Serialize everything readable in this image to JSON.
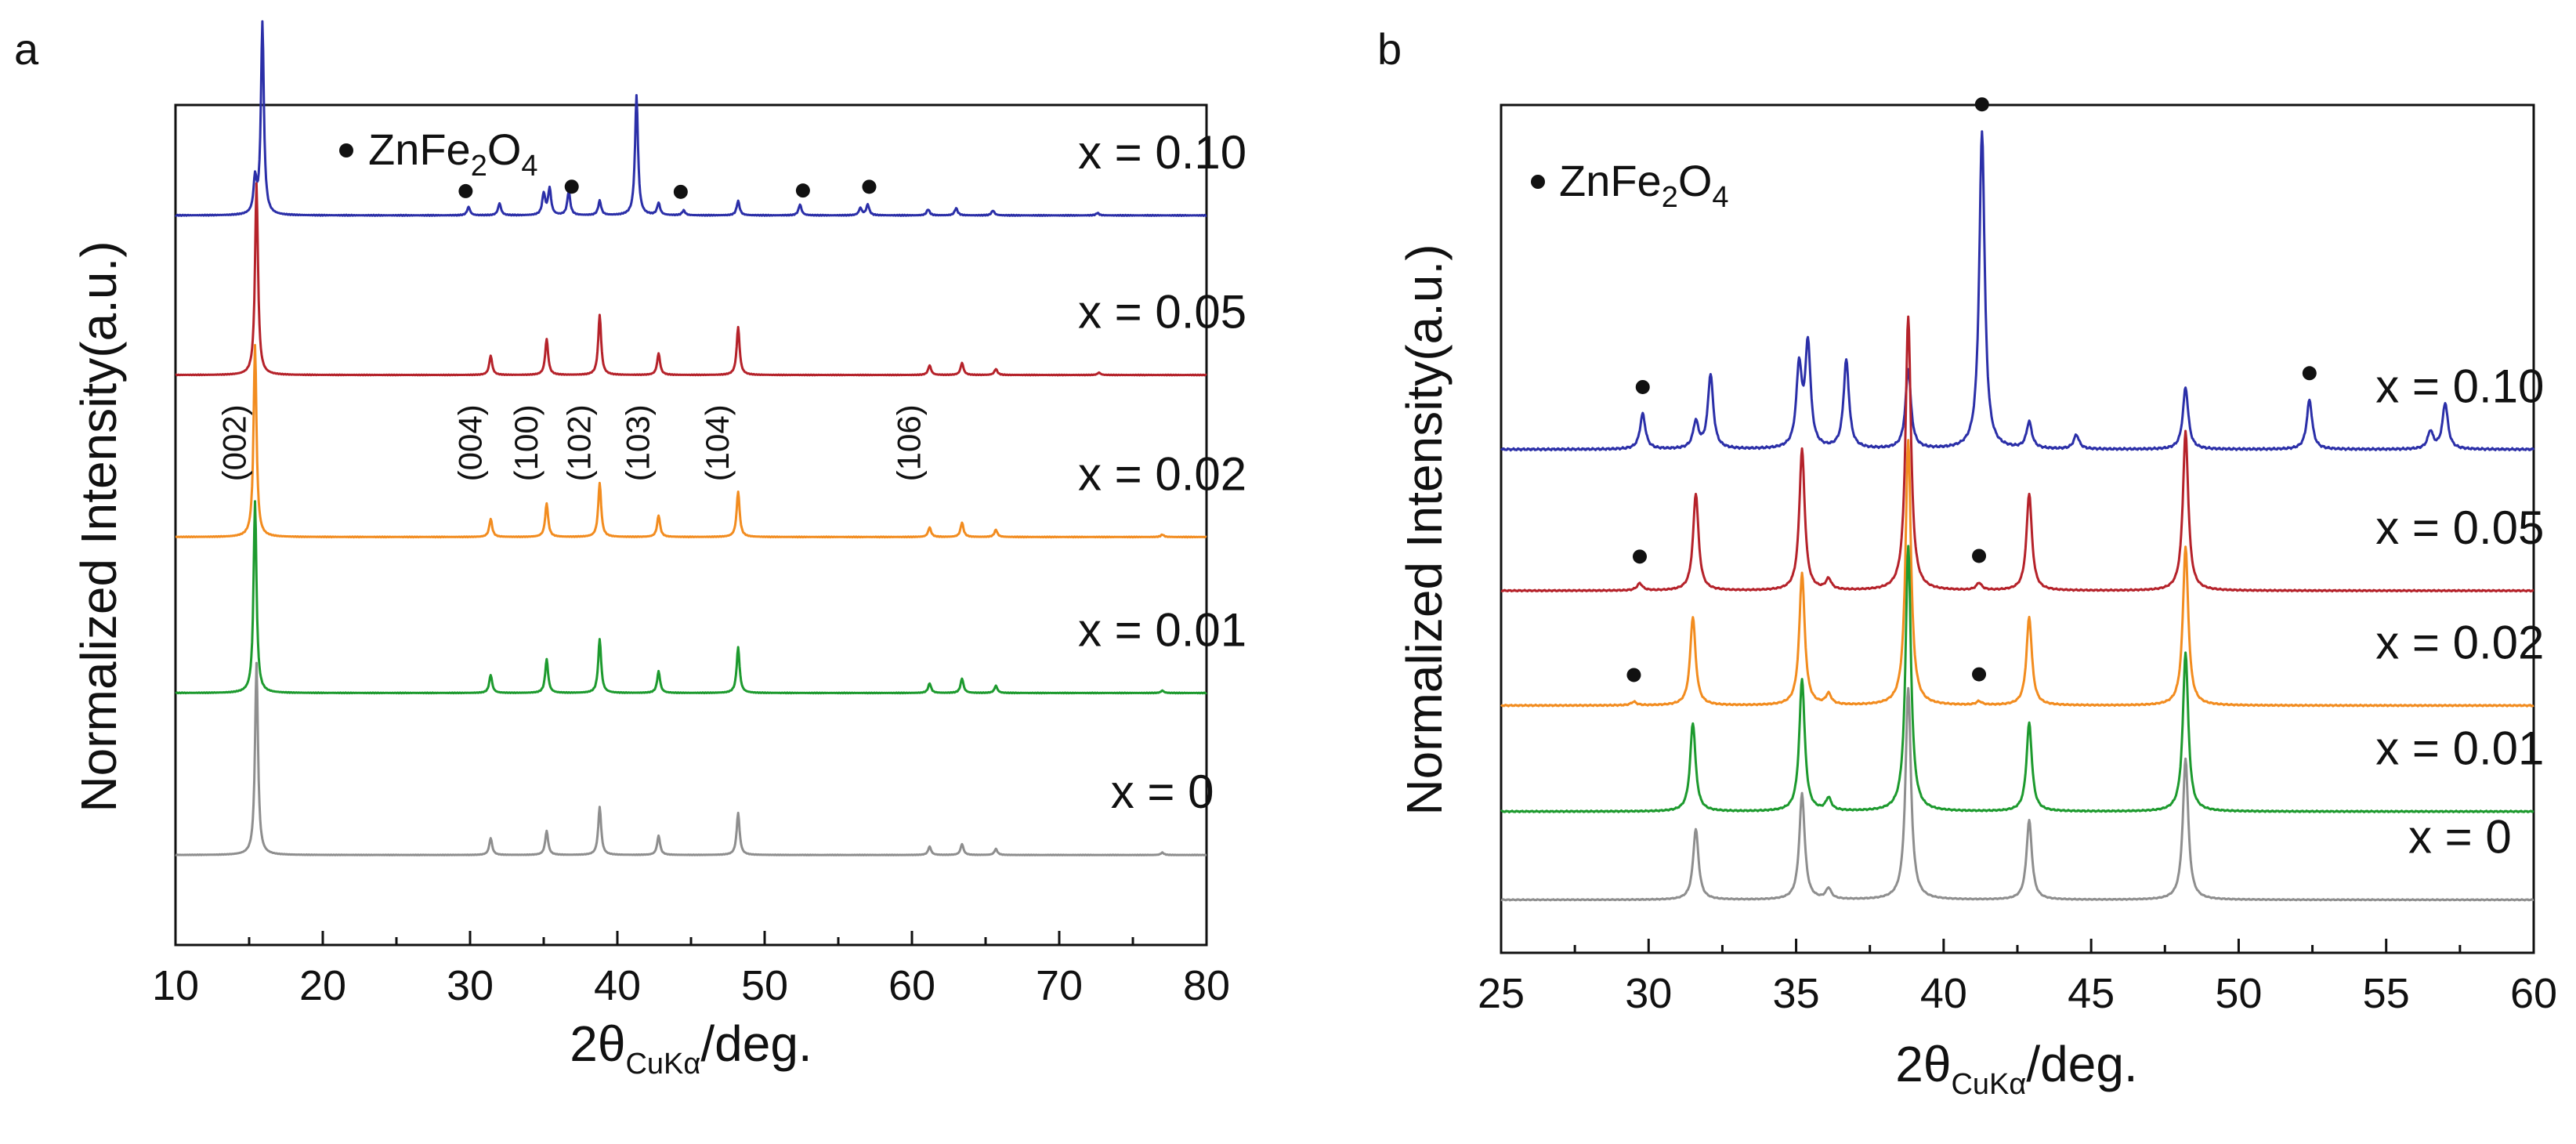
{
  "chart_data": [
    {
      "panel": "a",
      "type": "line",
      "xlabel": {
        "main": "2θ",
        "sub": "CuKα",
        "unit": "/deg."
      },
      "ylabel": "Normalized Intensity(a.u.)",
      "xlim": [
        10,
        80
      ],
      "xticks": [
        10,
        20,
        30,
        40,
        50,
        60,
        70,
        80
      ],
      "xtick_labels": [
        "10",
        "20",
        "30",
        "40",
        "50",
        "60",
        "70",
        "80"
      ],
      "legend": {
        "marker": "•",
        "text": "ZnFe",
        "sub1": "2",
        "text2": "O",
        "sub2": "4"
      },
      "miller_indices": [
        {
          "label": "(002)",
          "x": 15.4
        },
        {
          "label": "(004)",
          "x": 31.4
        },
        {
          "label": "(100)",
          "x": 35.2
        },
        {
          "label": "(102)",
          "x": 38.8
        },
        {
          "label": "(103)",
          "x": 42.8
        },
        {
          "label": "(104)",
          "x": 48.2
        },
        {
          "label": "(106)",
          "x": 61.2
        }
      ],
      "zn_markers": [
        29.7,
        36.9,
        44.3,
        52.6,
        57.1
      ],
      "series": [
        {
          "name": "x = 0.10",
          "color": "#2b2fa8",
          "baseline": 0.92,
          "noise": 0.004,
          "label_x": 77,
          "peaks": [
            [
              15.4,
              0.28
            ],
            [
              15.9,
              1.6
            ],
            [
              29.9,
              0.07
            ],
            [
              32.0,
              0.1
            ],
            [
              35.0,
              0.18
            ],
            [
              35.4,
              0.22
            ],
            [
              36.7,
              0.2
            ],
            [
              38.8,
              0.12
            ],
            [
              41.3,
              1.0
            ],
            [
              42.8,
              0.1
            ],
            [
              44.5,
              0.04
            ],
            [
              48.2,
              0.12
            ],
            [
              52.4,
              0.09
            ],
            [
              56.5,
              0.06
            ],
            [
              57.0,
              0.09
            ],
            [
              61.1,
              0.05
            ],
            [
              63.0,
              0.06
            ],
            [
              65.5,
              0.04
            ],
            [
              72.6,
              0.02
            ]
          ]
        },
        {
          "name": "x = 0.05",
          "color": "#b5222a",
          "baseline": 2.25,
          "noise": 0.003,
          "label_x": 77,
          "peaks": [
            [
              15.5,
              1.6
            ],
            [
              31.4,
              0.16
            ],
            [
              35.2,
              0.3
            ],
            [
              38.8,
              0.5
            ],
            [
              42.8,
              0.18
            ],
            [
              48.2,
              0.4
            ],
            [
              61.2,
              0.08
            ],
            [
              63.4,
              0.1
            ],
            [
              65.7,
              0.05
            ],
            [
              72.7,
              0.02
            ]
          ]
        },
        {
          "name": "x = 0.02",
          "color": "#f28c1f",
          "baseline": 3.6,
          "noise": 0.003,
          "label_x": 77,
          "peaks": [
            [
              15.4,
              1.6
            ],
            [
              31.4,
              0.15
            ],
            [
              35.2,
              0.28
            ],
            [
              38.8,
              0.45
            ],
            [
              42.8,
              0.18
            ],
            [
              48.2,
              0.38
            ],
            [
              61.2,
              0.08
            ],
            [
              63.4,
              0.12
            ],
            [
              65.7,
              0.06
            ],
            [
              77.0,
              0.02
            ]
          ]
        },
        {
          "name": "x = 0.01",
          "color": "#1d9a2e",
          "baseline": 4.9,
          "noise": 0.003,
          "label_x": 77,
          "peaks": [
            [
              15.4,
              1.6
            ],
            [
              31.4,
              0.15
            ],
            [
              35.2,
              0.28
            ],
            [
              38.8,
              0.45
            ],
            [
              42.8,
              0.18
            ],
            [
              48.2,
              0.38
            ],
            [
              61.2,
              0.08
            ],
            [
              63.4,
              0.12
            ],
            [
              65.7,
              0.06
            ],
            [
              77.0,
              0.02
            ]
          ]
        },
        {
          "name": "x = 0",
          "color": "#8e8e8e",
          "baseline": 6.25,
          "noise": 0.002,
          "label_x": 77,
          "peaks": [
            [
              15.5,
              1.6
            ],
            [
              31.4,
              0.14
            ],
            [
              35.2,
              0.2
            ],
            [
              38.8,
              0.4
            ],
            [
              42.8,
              0.16
            ],
            [
              48.2,
              0.35
            ],
            [
              61.2,
              0.07
            ],
            [
              63.4,
              0.09
            ],
            [
              65.7,
              0.05
            ],
            [
              77.0,
              0.02
            ]
          ]
        }
      ],
      "ylim_units": [
        0,
        7.0
      ]
    },
    {
      "panel": "b",
      "type": "line",
      "xlabel": {
        "main": "2θ",
        "sub": "CuKα",
        "unit": "/deg."
      },
      "ylabel": "Normalized Intensity(a.u.)",
      "xlim": [
        25,
        60
      ],
      "xticks": [
        25,
        30,
        35,
        40,
        45,
        50,
        55,
        60
      ],
      "xtick_labels": [
        "25",
        "30",
        "35",
        "40",
        "45",
        "50",
        "55",
        "60"
      ],
      "legend": {
        "marker": "•",
        "text": "ZnFe",
        "sub1": "2",
        "text2": "O",
        "sub2": "4"
      },
      "zn_markers_per_series": [
        [
          [
            29.8,
            "x = 0.10"
          ],
          [
            41.3,
            "x = 0.10"
          ],
          [
            52.4,
            "x = 0.10"
          ]
        ],
        [
          [
            29.7,
            "x = 0.05"
          ],
          [
            41.2,
            "x = 0.05"
          ]
        ],
        [
          [
            29.5,
            "x = 0.02"
          ],
          [
            41.2,
            "x = 0.02"
          ]
        ]
      ],
      "series": [
        {
          "name": "x = 0.10",
          "color": "#2b2fa8",
          "baseline": 1.95,
          "noise": 0.006,
          "label_x": 57.5,
          "peaks": [
            [
              29.8,
              0.2
            ],
            [
              31.6,
              0.15
            ],
            [
              32.1,
              0.42
            ],
            [
              35.1,
              0.45
            ],
            [
              35.4,
              0.58
            ],
            [
              36.7,
              0.5
            ],
            [
              38.8,
              0.45
            ],
            [
              41.3,
              1.8
            ],
            [
              42.9,
              0.15
            ],
            [
              44.5,
              0.08
            ],
            [
              48.2,
              0.35
            ],
            [
              52.4,
              0.28
            ],
            [
              56.5,
              0.1
            ],
            [
              57.0,
              0.26
            ]
          ]
        },
        {
          "name": "x = 0.05",
          "color": "#b5222a",
          "baseline": 2.75,
          "noise": 0.004,
          "label_x": 57.5,
          "peaks": [
            [
              29.7,
              0.04
            ],
            [
              31.6,
              0.55
            ],
            [
              35.2,
              0.8
            ],
            [
              36.1,
              0.06
            ],
            [
              38.8,
              1.55
            ],
            [
              41.2,
              0.04
            ],
            [
              42.9,
              0.55
            ],
            [
              48.2,
              0.9
            ]
          ]
        },
        {
          "name": "x = 0.02",
          "color": "#f28c1f",
          "baseline": 3.4,
          "noise": 0.004,
          "label_x": 57.5,
          "peaks": [
            [
              29.5,
              0.02
            ],
            [
              31.5,
              0.5
            ],
            [
              35.2,
              0.75
            ],
            [
              36.1,
              0.06
            ],
            [
              38.8,
              1.5
            ],
            [
              41.2,
              0.02
            ],
            [
              42.9,
              0.5
            ],
            [
              48.2,
              0.9
            ]
          ]
        },
        {
          "name": "x = 0.01",
          "color": "#1d9a2e",
          "baseline": 4.0,
          "noise": 0.004,
          "label_x": 57.5,
          "peaks": [
            [
              31.5,
              0.5
            ],
            [
              35.2,
              0.75
            ],
            [
              36.1,
              0.07
            ],
            [
              38.8,
              1.5
            ],
            [
              42.9,
              0.5
            ],
            [
              48.2,
              0.9
            ]
          ]
        },
        {
          "name": "x = 0",
          "color": "#8e8e8e",
          "baseline": 4.5,
          "noise": 0.003,
          "label_x": 57.5,
          "peaks": [
            [
              31.6,
              0.4
            ],
            [
              35.2,
              0.6
            ],
            [
              36.1,
              0.06
            ],
            [
              38.8,
              1.2
            ],
            [
              42.9,
              0.45
            ],
            [
              48.2,
              0.8
            ]
          ]
        }
      ],
      "ylim_units": [
        0,
        4.8
      ]
    }
  ]
}
